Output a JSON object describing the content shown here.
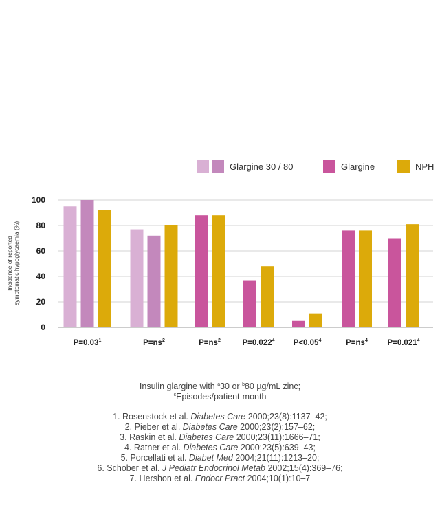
{
  "chart_data": {
    "type": "bar",
    "ylabel_lines": [
      "Incidence of reported",
      "symptomatic hypoglycaemia (%)"
    ],
    "ylim": [
      0,
      100
    ],
    "yticks": [
      0,
      20,
      40,
      60,
      80,
      100
    ],
    "grid": true,
    "legend_position": "top-right",
    "legend": [
      {
        "label": "Glargine 30 / 80",
        "colors": [
          "#d9b0d4",
          "#c388bc"
        ]
      },
      {
        "label": "Glargine",
        "colors": [
          "#c9559c"
        ]
      },
      {
        "label": "NPH",
        "colors": [
          "#dcaa0a"
        ]
      }
    ],
    "groups": [
      {
        "label": "P=0.03",
        "sup": "1",
        "bars": [
          {
            "series": "Glargine 30",
            "value": 95,
            "color": "#d9b0d4"
          },
          {
            "series": "Glargine 80",
            "value": 100,
            "color": "#c388bc"
          },
          {
            "series": "NPH",
            "value": 92,
            "color": "#dcaa0a"
          }
        ]
      },
      {
        "label": "P=ns",
        "sup": "2",
        "bars": [
          {
            "series": "Glargine 30",
            "value": 77,
            "color": "#d9b0d4"
          },
          {
            "series": "Glargine 80",
            "value": 72,
            "color": "#c388bc"
          },
          {
            "series": "NPH",
            "value": 80,
            "color": "#dcaa0a"
          }
        ]
      },
      {
        "label": "P=ns",
        "sup": "2",
        "bars": [
          {
            "series": "Glargine",
            "value": 88,
            "color": "#c9559c"
          },
          {
            "series": "NPH",
            "value": 88,
            "color": "#dcaa0a"
          }
        ]
      },
      {
        "label": "P=0.022",
        "sup": "4",
        "bars": [
          {
            "series": "Glargine",
            "value": 37,
            "color": "#c9559c"
          },
          {
            "series": "NPH",
            "value": 48,
            "color": "#dcaa0a"
          }
        ]
      },
      {
        "label": "P<0.05",
        "sup": "4",
        "bars": [
          {
            "series": "Glargine",
            "value": 5,
            "color": "#c9559c"
          },
          {
            "series": "NPH",
            "value": 11,
            "color": "#dcaa0a"
          }
        ]
      },
      {
        "label": "P=ns",
        "sup": "4",
        "bars": [
          {
            "series": "Glargine",
            "value": 76,
            "color": "#c9559c"
          },
          {
            "series": "NPH",
            "value": 76,
            "color": "#dcaa0a"
          }
        ]
      },
      {
        "label": "P=0.021",
        "sup": "4",
        "bars": [
          {
            "series": "Glargine",
            "value": 70,
            "color": "#c9559c"
          },
          {
            "series": "NPH",
            "value": 81,
            "color": "#dcaa0a"
          }
        ]
      }
    ]
  },
  "footnote": {
    "line1_prefix": "Insulin glargine with ",
    "line1_sup_a": "a",
    "line1_mid": "30 or ",
    "line1_sup_b": "b",
    "line1_suffix": "80 µg/mL zinc;",
    "line2_sup_c": "c",
    "line2_text": "Episodes/patient-month"
  },
  "references": [
    {
      "pre": "1. Rosenstock et al. ",
      "journal": "Diabetes Care",
      "post": " 2000;23(8):1137–42;"
    },
    {
      "pre": "2. Pieber et al. ",
      "journal": "Diabetes Care",
      "post": " 2000;23(2):157–62;"
    },
    {
      "pre": "3. Raskin et al. ",
      "journal": "Diabetes Care",
      "post": " 2000;23(11):1666–71;"
    },
    {
      "pre": "4. Ratner et al. ",
      "journal": "Diabetes Care",
      "post": " 2000;23(5):639–43;"
    },
    {
      "pre": "5. Porcellati et al. ",
      "journal": "Diabet Med",
      "post": " 2004;21(11):1213–20;"
    },
    {
      "pre": "6. Schober et al. ",
      "journal": "J Pediatr Endocrinol Metab",
      "post": " 2002;15(4):369–76;"
    },
    {
      "pre": "7. Hershon et al. ",
      "journal": "Endocr Pract",
      "post": " 2004;10(1):10–7"
    }
  ]
}
